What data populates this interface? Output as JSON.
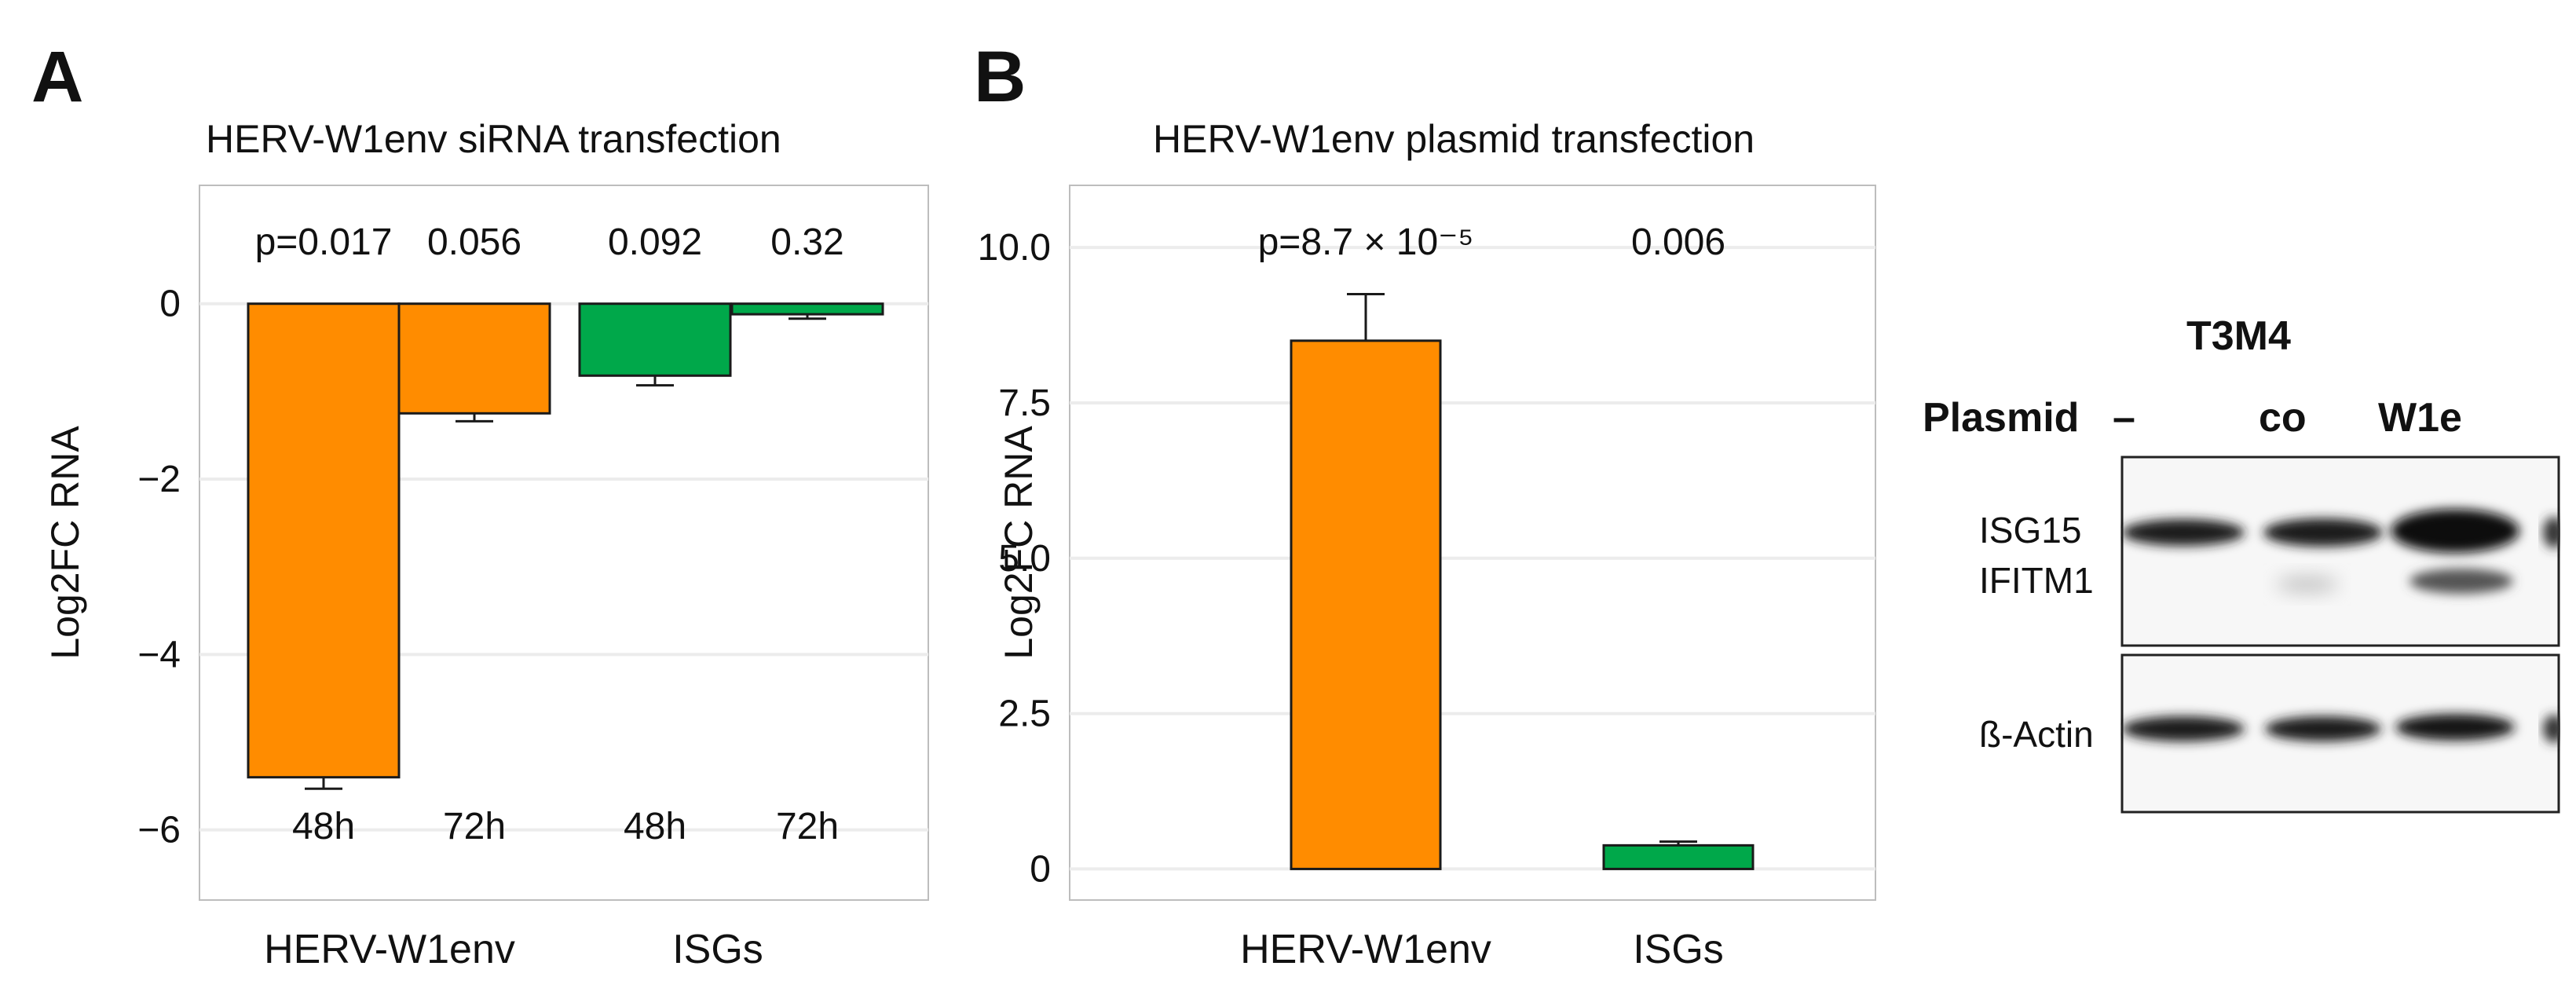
{
  "panels": {
    "a": {
      "letter": "A"
    },
    "b": {
      "letter": "B"
    }
  },
  "colors": {
    "orange": "#ff8c00",
    "green": "#00a84a",
    "frame": "#bdbdbd",
    "grid": "#ececec"
  },
  "chart_data": [
    {
      "type": "bar",
      "title": "HERV-W1env siRNA transfection",
      "ylabel": "Log2FC RNA",
      "ylim": [
        -6.8,
        1.35
      ],
      "yticks": [
        0,
        -2,
        -4,
        -6
      ],
      "ytick_labels": [
        "0",
        "−2",
        "−4",
        "−6"
      ],
      "grid": true,
      "groups": [
        "HERV-W1env",
        "ISGs"
      ],
      "bars": [
        {
          "group": "HERV-W1env",
          "label": "48h",
          "value": -5.4,
          "error": 0.13,
          "pvalue": "p=0.017",
          "color": "#ff8c00"
        },
        {
          "group": "HERV-W1env",
          "label": "72h",
          "value": -1.25,
          "error": 0.09,
          "pvalue": "0.056",
          "color": "#ff8c00"
        },
        {
          "group": "ISGs",
          "label": "48h",
          "value": -0.82,
          "error": 0.11,
          "pvalue": "0.092",
          "color": "#00a84a"
        },
        {
          "group": "ISGs",
          "label": "72h",
          "value": -0.12,
          "error": 0.05,
          "pvalue": "0.32",
          "color": "#00a84a"
        }
      ]
    },
    {
      "type": "bar",
      "title": "HERV-W1env plasmid transfection",
      "ylabel": "Log2FC RNA",
      "ylim": [
        -0.5,
        11.0
      ],
      "yticks": [
        0,
        2.5,
        5.0,
        7.5,
        10.0
      ],
      "ytick_labels": [
        "0",
        "2.5",
        "5.0",
        "7.5",
        "10.0"
      ],
      "grid": true,
      "groups": [
        "HERV-W1env",
        "ISGs"
      ],
      "bars": [
        {
          "group": "HERV-W1env",
          "value": 8.5,
          "error": 0.75,
          "pvalue": "p=8.7 × 10⁻⁵",
          "color": "#ff8c00"
        },
        {
          "group": "ISGs",
          "value": 0.38,
          "error": 0.06,
          "pvalue": "0.006",
          "color": "#00a84a"
        }
      ]
    }
  ],
  "western_blot": {
    "cell_line": "T3M4",
    "row_label": "Plasmid",
    "lanes": [
      "–",
      "co",
      "W1e"
    ],
    "upper_blot_labels": [
      "ISG15",
      "IFITM1"
    ],
    "lower_blot_label": "ß-Actin"
  }
}
